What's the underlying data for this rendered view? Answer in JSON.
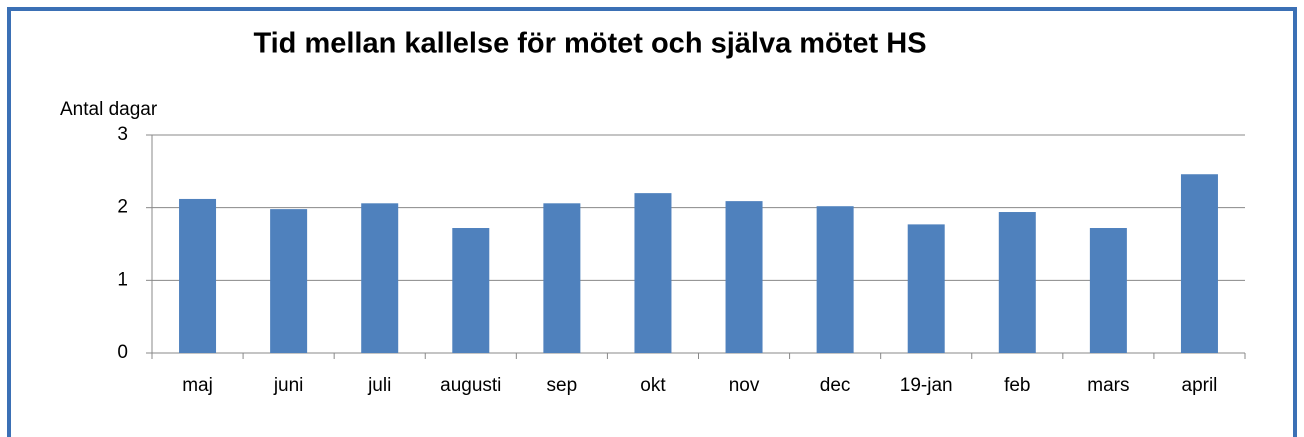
{
  "chart_data": {
    "type": "bar",
    "title": "Tid mellan kallelse för mötet och själva mötet HS",
    "y_label": "Antal dagar",
    "categories": [
      "maj",
      "juni",
      "juli",
      "augusti",
      "sep",
      "okt",
      "nov",
      "dec",
      "19-jan",
      "feb",
      "mars",
      "april"
    ],
    "values": [
      2.12,
      1.98,
      2.06,
      1.72,
      2.06,
      2.2,
      2.09,
      2.02,
      1.77,
      1.94,
      1.72,
      2.46
    ],
    "color": "#4f81bd",
    "ylim": [
      0,
      3
    ],
    "yticks": [
      0,
      1,
      2,
      3
    ],
    "grid": true
  }
}
